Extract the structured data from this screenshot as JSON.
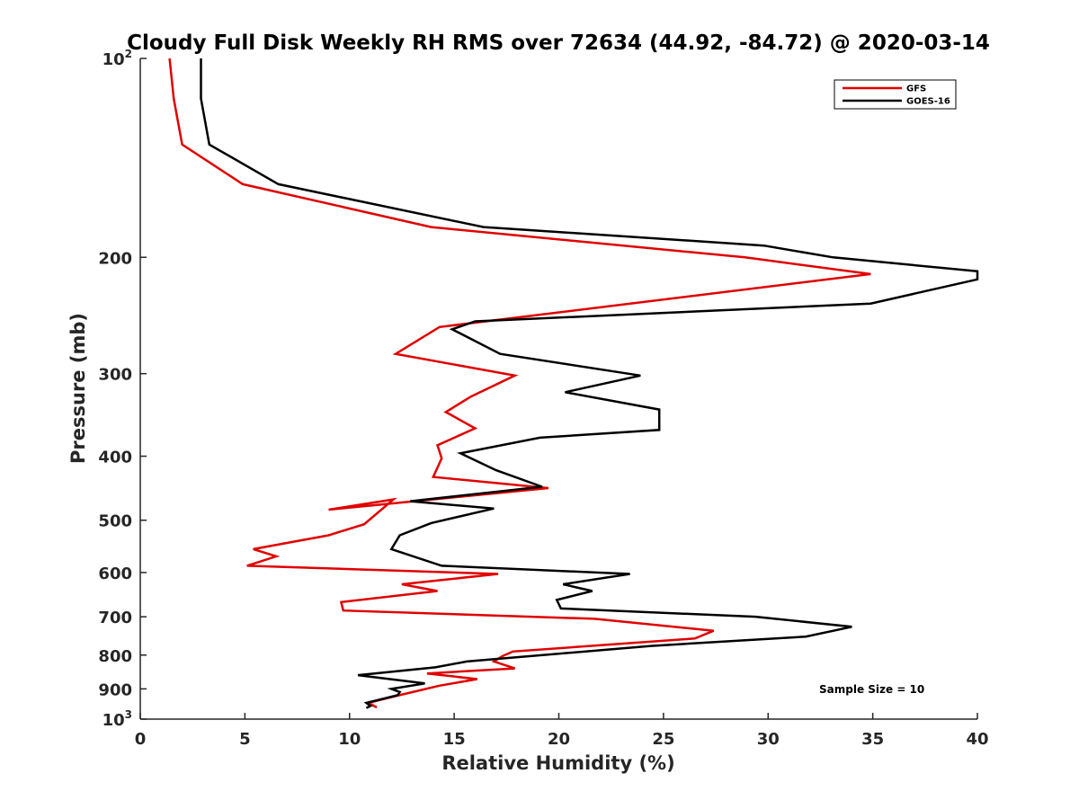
{
  "chart_data": {
    "type": "line",
    "title": "Cloudy Full Disk Weekly RH RMS over 72634 (44.92, -84.72) @ 2020-03-14",
    "xlabel": "Relative Humidity (%)",
    "ylabel": "Pressure (mb)",
    "xlim": [
      0,
      40
    ],
    "ylim": [
      100,
      1000
    ],
    "yscale": "log",
    "y_reversed": true,
    "x_ticks": [
      "0",
      "5",
      "10",
      "15",
      "20",
      "25",
      "30",
      "35",
      "40"
    ],
    "y_ticks": [
      {
        "value": 100,
        "base": "10",
        "exp": "2"
      },
      {
        "value": 200,
        "label": "200"
      },
      {
        "value": 300,
        "label": "300"
      },
      {
        "value": 400,
        "label": "400"
      },
      {
        "value": 500,
        "label": "500"
      },
      {
        "value": 600,
        "label": "600"
      },
      {
        "value": 700,
        "label": "700"
      },
      {
        "value": 800,
        "label": "800"
      },
      {
        "value": 900,
        "label": "900"
      },
      {
        "value": 1000,
        "base": "10",
        "exp": "3"
      }
    ],
    "grid": false,
    "legend_position": "top-right",
    "annotation": "Sample Size = 10",
    "series": [
      {
        "name": "GFS",
        "color": "#e00000",
        "points": [
          [
            1.4,
            100
          ],
          [
            1.6,
            115
          ],
          [
            2.0,
            135
          ],
          [
            4.9,
            155
          ],
          [
            13.9,
            180
          ],
          [
            28.9,
            200
          ],
          [
            34.9,
            212
          ],
          [
            14.3,
            255
          ],
          [
            12.2,
            280
          ],
          [
            17.9,
            302
          ],
          [
            15.8,
            325
          ],
          [
            14.6,
            343
          ],
          [
            16.0,
            363
          ],
          [
            14.2,
            385
          ],
          [
            14.4,
            403
          ],
          [
            14.0,
            430
          ],
          [
            19.5,
            447
          ],
          [
            9.0,
            482
          ],
          [
            12.1,
            465
          ],
          [
            10.7,
            507
          ],
          [
            9.0,
            527
          ],
          [
            5.4,
            553
          ],
          [
            6.5,
            567
          ],
          [
            5.1,
            586
          ],
          [
            17.1,
            603
          ],
          [
            12.5,
            625
          ],
          [
            14.2,
            640
          ],
          [
            9.6,
            665
          ],
          [
            9.7,
            685
          ],
          [
            21.7,
            705
          ],
          [
            27.4,
            735
          ],
          [
            26.5,
            755
          ],
          [
            17.8,
            790
          ],
          [
            17.3,
            803
          ],
          [
            16.9,
            818
          ],
          [
            17.9,
            838
          ],
          [
            13.7,
            853
          ],
          [
            16.1,
            870
          ],
          [
            14.3,
            890
          ],
          [
            12.2,
            923
          ],
          [
            10.9,
            945
          ],
          [
            11.3,
            960
          ]
        ]
      },
      {
        "name": "GOES-16",
        "color": "#000000",
        "points": [
          [
            2.9,
            100
          ],
          [
            2.9,
            115
          ],
          [
            3.3,
            135
          ],
          [
            6.6,
            155
          ],
          [
            16.4,
            180
          ],
          [
            29.8,
            192
          ],
          [
            33.1,
            200
          ],
          [
            40.0,
            210
          ],
          [
            40.0,
            216
          ],
          [
            34.9,
            235
          ],
          [
            16.0,
            250
          ],
          [
            14.9,
            257
          ],
          [
            17.2,
            280
          ],
          [
            23.9,
            302
          ],
          [
            20.3,
            320
          ],
          [
            24.8,
            340
          ],
          [
            24.8,
            365
          ],
          [
            19.1,
            375
          ],
          [
            15.3,
            396
          ],
          [
            17.0,
            420
          ],
          [
            19.2,
            445
          ],
          [
            12.9,
            468
          ],
          [
            16.9,
            480
          ],
          [
            13.9,
            505
          ],
          [
            12.4,
            527
          ],
          [
            12.0,
            553
          ],
          [
            14.4,
            586
          ],
          [
            23.4,
            603
          ],
          [
            20.2,
            625
          ],
          [
            21.6,
            640
          ],
          [
            19.9,
            660
          ],
          [
            20.1,
            680
          ],
          [
            29.4,
            700
          ],
          [
            34.0,
            725
          ],
          [
            31.8,
            750
          ],
          [
            24.4,
            775
          ],
          [
            15.6,
            818
          ],
          [
            14.1,
            835
          ],
          [
            10.4,
            858
          ],
          [
            13.6,
            883
          ],
          [
            12.0,
            900
          ],
          [
            12.4,
            910
          ],
          [
            12.3,
            920
          ],
          [
            10.8,
            945
          ],
          [
            11.0,
            955
          ],
          [
            10.8,
            962
          ]
        ]
      }
    ]
  }
}
